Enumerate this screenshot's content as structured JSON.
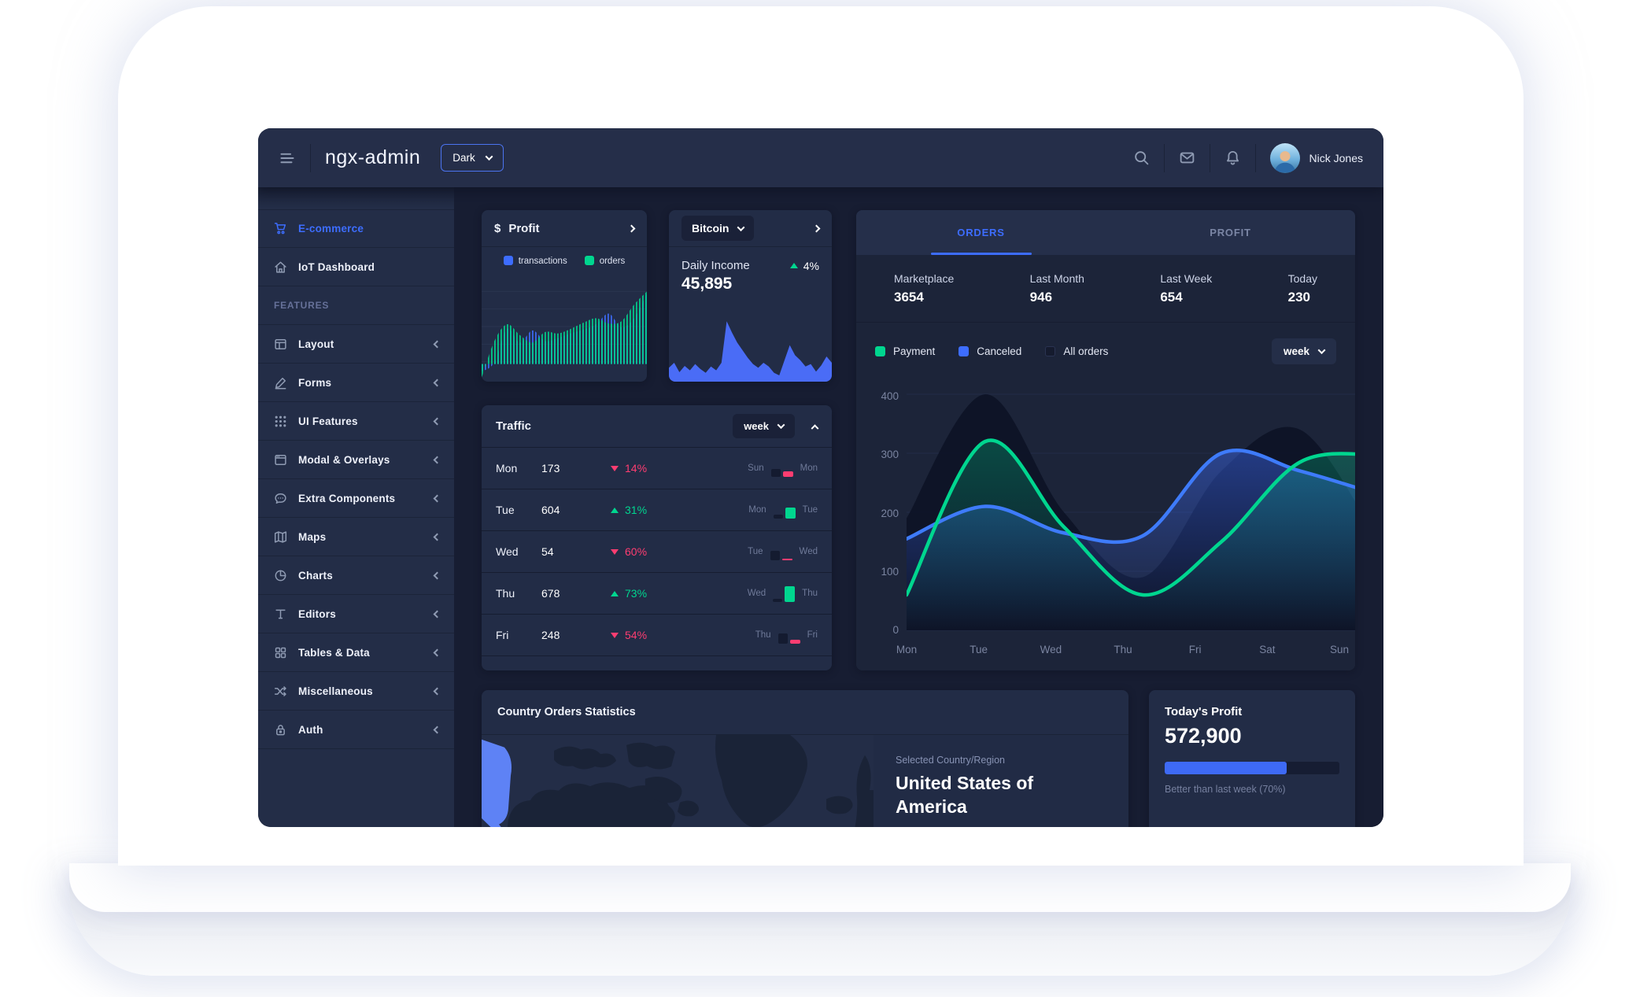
{
  "colors": {
    "primary": "#3d6dff",
    "success": "#00d68f",
    "danger": "#ff3d71",
    "card_bg": "#222c46",
    "body_bg": "#171d32",
    "hint": "#8f9bb3",
    "dark_series": "#0d1426"
  },
  "header": {
    "title": "ngx-admin",
    "menu_icon": "menu-icon",
    "theme_select": {
      "value": "Dark"
    },
    "action_icons": [
      "search-icon",
      "email-icon",
      "bell-icon"
    ],
    "user": {
      "name": "Nick Jones"
    }
  },
  "sidebar": {
    "items": [
      {
        "label": "E-commerce",
        "icon": "cart-icon",
        "active": true,
        "expandable": false
      },
      {
        "label": "IoT Dashboard",
        "icon": "home-icon",
        "expandable": false
      },
      {
        "label": "FEATURES",
        "type": "section"
      },
      {
        "label": "Layout",
        "icon": "layout-icon",
        "expandable": true
      },
      {
        "label": "Forms",
        "icon": "edit-icon",
        "expandable": true
      },
      {
        "label": "UI Features",
        "icon": "keypad-icon",
        "expandable": true
      },
      {
        "label": "Modal & Overlays",
        "icon": "browser-icon",
        "expandable": true
      },
      {
        "label": "Extra Components",
        "icon": "message-icon",
        "expandable": true
      },
      {
        "label": "Maps",
        "icon": "map-icon",
        "expandable": true
      },
      {
        "label": "Charts",
        "icon": "pie-chart-icon",
        "expandable": true
      },
      {
        "label": "Editors",
        "icon": "text-icon",
        "expandable": true
      },
      {
        "label": "Tables & Data",
        "icon": "grid-icon",
        "expandable": true
      },
      {
        "label": "Miscellaneous",
        "icon": "shuffle-icon",
        "expandable": true
      },
      {
        "label": "Auth",
        "icon": "lock-icon",
        "expandable": true
      }
    ]
  },
  "cards": {
    "profit": {
      "icon_glyph": "$",
      "title": "Profit",
      "legend": [
        {
          "label": "transactions",
          "color": "#3d6dff"
        },
        {
          "label": "orders",
          "color": "#00d68f"
        }
      ]
    },
    "bitcoin": {
      "selector_value": "Bitcoin",
      "stat_label": "Daily Income",
      "stat_value": "45,895",
      "delta": "4%",
      "delta_direction": "up"
    },
    "orders": {
      "tabs": [
        {
          "label": "ORDERS",
          "active": true
        },
        {
          "label": "PROFIT",
          "active": false
        }
      ],
      "stats": [
        {
          "label": "Marketplace",
          "value": "3654"
        },
        {
          "label": "Last Month",
          "value": "946"
        },
        {
          "label": "Last Week",
          "value": "654"
        },
        {
          "label": "Today",
          "value": "230"
        }
      ],
      "legend": [
        {
          "label": "Payment",
          "color": "#00d68f"
        },
        {
          "label": "Canceled",
          "color": "#3d6dff"
        },
        {
          "label": "All orders",
          "color": "#151b2e"
        }
      ],
      "period": "week"
    },
    "traffic": {
      "title": "Traffic",
      "period": "week",
      "rows": [
        {
          "day": "Mon",
          "value": "173",
          "delta": "14%",
          "direction": "down",
          "compare": {
            "prev_label": "Sun",
            "next_label": "Mon",
            "prev_bar": 10,
            "next_bar": 7
          }
        },
        {
          "day": "Tue",
          "value": "604",
          "delta": "31%",
          "direction": "up",
          "compare": {
            "prev_label": "Mon",
            "next_label": "Tue",
            "prev_bar": 5,
            "next_bar": 14
          }
        },
        {
          "day": "Wed",
          "value": "54",
          "delta": "60%",
          "direction": "down",
          "compare": {
            "prev_label": "Tue",
            "next_label": "Wed",
            "prev_bar": 12,
            "next_bar": 2
          }
        },
        {
          "day": "Thu",
          "value": "678",
          "delta": "73%",
          "direction": "up",
          "compare": {
            "prev_label": "Wed",
            "next_label": "Thu",
            "prev_bar": 4,
            "next_bar": 20
          }
        },
        {
          "day": "Fri",
          "value": "248",
          "delta": "54%",
          "direction": "down",
          "compare": {
            "prev_label": "Thu",
            "next_label": "Fri",
            "prev_bar": 13,
            "next_bar": 5
          }
        }
      ]
    },
    "country": {
      "title": "Country Orders Statistics",
      "selected_label": "Selected Country/Region",
      "selected_value": "United States of America"
    },
    "today_profit": {
      "title": "Today's Profit",
      "value": "572,900",
      "progress_pct": 70,
      "caption": "Better than last week (70%)"
    }
  },
  "chart_data": [
    {
      "id": "profit_mini",
      "type": "area",
      "title": "Profit",
      "ylim": [
        0,
        100
      ],
      "grid": true,
      "legend_position": "top",
      "series": [
        {
          "name": "transactions",
          "color": "#3d6dff",
          "values": [
            -10,
            2,
            46,
            28,
            44,
            30,
            34,
            40,
            45,
            52,
            66,
            48,
            60,
            92
          ]
        },
        {
          "name": "orders",
          "color": "#00d68f",
          "values": [
            -18,
            30,
            52,
            38,
            28,
            42,
            40,
            46,
            54,
            60,
            53,
            56,
            78,
            95
          ]
        }
      ]
    },
    {
      "id": "bitcoin_mini",
      "type": "area",
      "title": "Bitcoin Daily Income",
      "color": "#4a6cf6",
      "ylim": [
        0,
        100
      ],
      "values": [
        22,
        30,
        15,
        25,
        18,
        28,
        20,
        14,
        24,
        18,
        30,
        96,
        78,
        62,
        50,
        38,
        28,
        22,
        30,
        24,
        14,
        10,
        34,
        58,
        42,
        34,
        24,
        28,
        16,
        26,
        40,
        30
      ]
    },
    {
      "id": "orders_week",
      "type": "line",
      "categories": [
        "Mon",
        "Tue",
        "Wed",
        "Thu",
        "Fri",
        "Sat",
        "Sun"
      ],
      "ylim": [
        0,
        400
      ],
      "yticks": [
        0,
        100,
        200,
        300,
        400
      ],
      "grid": true,
      "legend_position": "top",
      "series": [
        {
          "name": "All orders",
          "style": "dark-area",
          "color": "#0d1426",
          "values": [
            190,
            400,
            200,
            90,
            270,
            340,
            150
          ]
        },
        {
          "name": "Canceled",
          "style": "line",
          "color": "#3e7bfa",
          "values": [
            155,
            210,
            165,
            160,
            300,
            270,
            230
          ]
        },
        {
          "name": "Payment",
          "style": "line",
          "color": "#00d68f",
          "values": [
            60,
            320,
            175,
            60,
            150,
            285,
            297
          ]
        }
      ]
    }
  ]
}
